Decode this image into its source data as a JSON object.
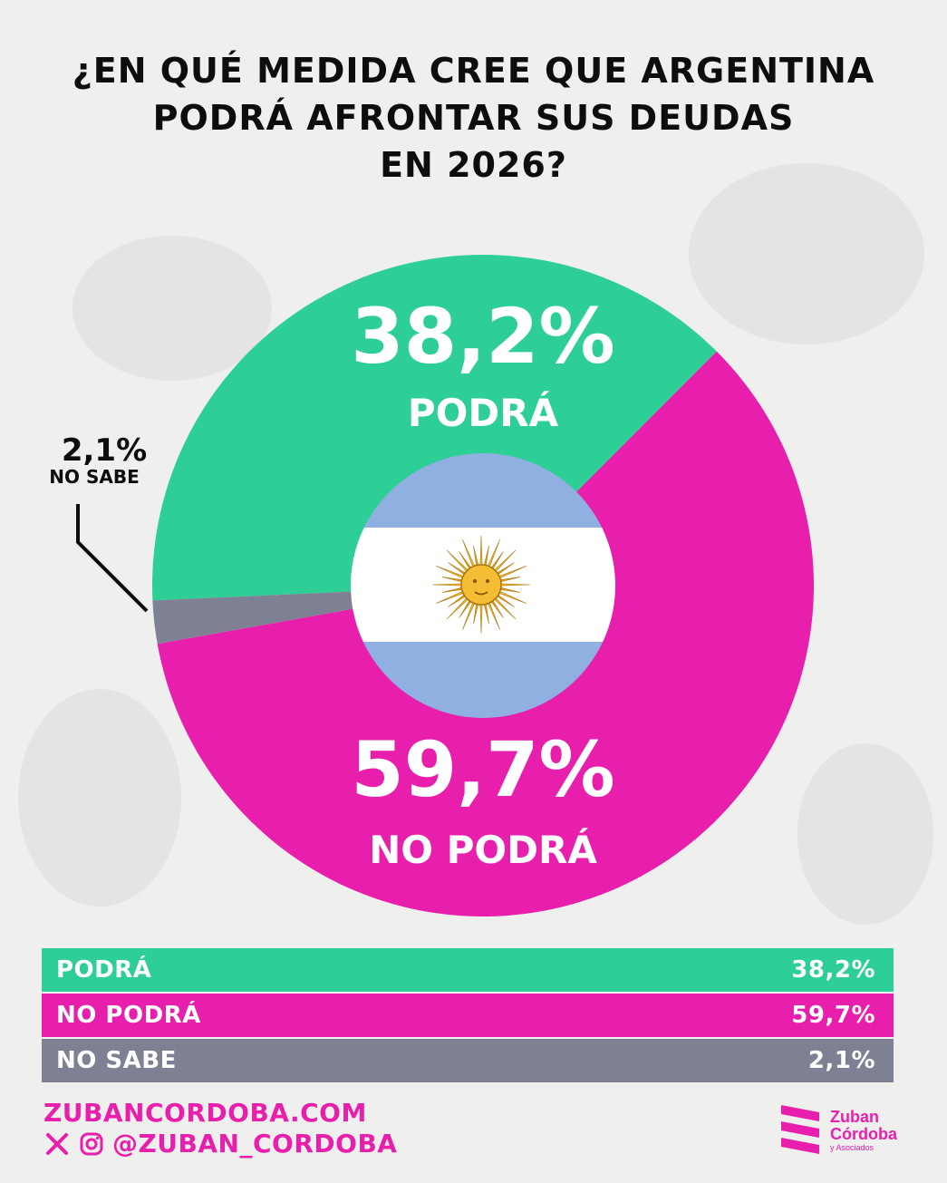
{
  "title": "¿EN QUÉ MEDIDA CREE QUE ARGENTINA\nPODRÁ AFRONTAR SUS DEUDAS\nEN 2026?",
  "chart_data": {
    "type": "pie",
    "title": "¿EN QUÉ MEDIDA CREE QUE ARGENTINA PODRÁ AFRONTAR SUS DEUDAS EN 2026?",
    "labels": [
      "PODRÁ",
      "NO PODRÁ",
      "NO SABE"
    ],
    "values": [
      38.2,
      59.7,
      2.1
    ],
    "value_labels": [
      "38,2%",
      "59,7%",
      "2,1%"
    ],
    "colors": [
      "#2ecf96",
      "#e81fac",
      "#7e8193"
    ],
    "center_image": "argentina-flag"
  },
  "legend": [
    {
      "label": "PODRÁ",
      "value": "38,2%",
      "color": "#2ecf96"
    },
    {
      "label": "NO PODRÁ",
      "value": "59,7%",
      "color": "#e81fac"
    },
    {
      "label": "NO SABE",
      "value": "2,1%",
      "color": "#7e8193"
    }
  ],
  "footer": {
    "url": "ZUBANCORDOBA.COM",
    "handle": "@ZUBAN_CORDOBA",
    "icons": [
      "x-icon",
      "instagram-icon"
    ]
  },
  "logo": {
    "line1": "Zuban",
    "line2": "Córdoba",
    "line3": "y Asociados",
    "color": "#e81fac"
  }
}
